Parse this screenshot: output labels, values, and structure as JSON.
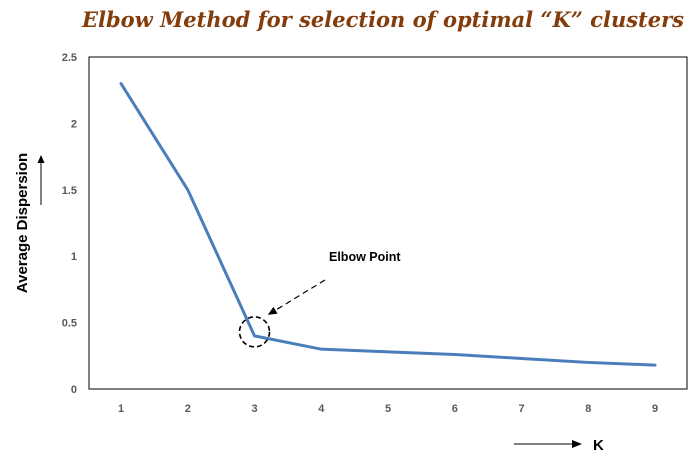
{
  "chart_data": {
    "type": "line",
    "title": "Elbow Method for selection of optimal “K” clusters",
    "xlabel": "K",
    "ylabel": "Average Dispersion",
    "x": [
      1,
      2,
      3,
      4,
      5,
      6,
      7,
      8,
      9
    ],
    "x_tick_labels": [
      "1",
      "2",
      "3",
      "4",
      "5",
      "6",
      "7",
      "8",
      "9"
    ],
    "y": [
      2.3,
      1.5,
      0.4,
      0.3,
      0.28,
      0.26,
      0.23,
      0.2,
      0.18
    ],
    "y_tick_labels": [
      "0",
      "0.5",
      "1",
      "1.5",
      "2",
      "2.5"
    ],
    "ylim": [
      0,
      2.5
    ],
    "grid": false,
    "legend": "none",
    "annotation": {
      "text": "Elbow Point",
      "target_x": 3,
      "target_y": 0.4
    }
  },
  "colors": {
    "title": "#833c0b",
    "line": "#4a7ebb",
    "plot_border": "#000000",
    "tick_text": "#595959"
  }
}
